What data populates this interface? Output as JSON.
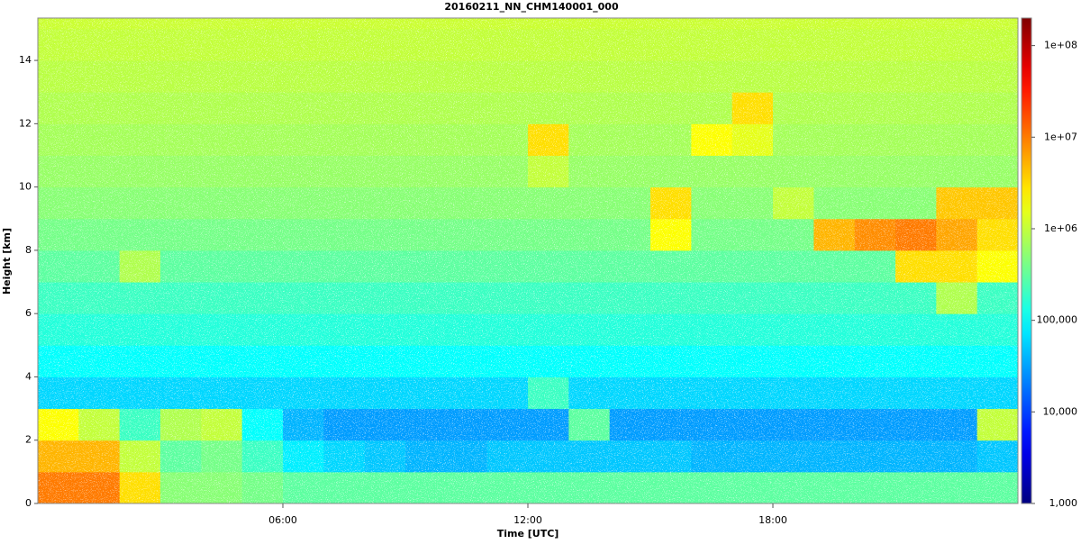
{
  "chart_data": {
    "type": "heatmap",
    "title": "20160211_NN_CHM140001_000",
    "x_label": "Time [UTC]",
    "y_label": "Height [km]",
    "xlim": [
      0,
      24
    ],
    "ylim": [
      0,
      15.34
    ],
    "xticks": [
      {
        "value": 6,
        "label": "06:00"
      },
      {
        "value": 12,
        "label": "12:00"
      },
      {
        "value": 18,
        "label": "18:00"
      }
    ],
    "yticks": [
      0,
      2,
      4,
      6,
      8,
      10,
      12,
      14
    ],
    "colormap": "jet",
    "color_scale": "log",
    "clim": [
      1000,
      200000000
    ],
    "cticks": [
      {
        "value": 1000,
        "label": "1,000"
      },
      {
        "value": 10000,
        "label": "10,000"
      },
      {
        "value": 100000,
        "label": "100,000"
      },
      {
        "value": 1000000,
        "label": "1e+06"
      },
      {
        "value": 10000000,
        "label": "1e+07"
      },
      {
        "value": 100000000,
        "label": "1e+08"
      }
    ],
    "z": [
      [
        10000000,
        10000000,
        3000000,
        500000,
        500000,
        400000,
        300000,
        300000,
        300000,
        300000,
        300000,
        300000,
        300000,
        300000,
        300000,
        300000,
        300000,
        300000,
        300000,
        300000,
        300000,
        300000,
        300000,
        300000
      ],
      [
        5000000,
        5000000,
        1000000,
        300000,
        400000,
        200000,
        80000,
        60000,
        50000,
        40000,
        40000,
        50000,
        50000,
        50000,
        50000,
        50000,
        40000,
        40000,
        40000,
        40000,
        40000,
        40000,
        40000,
        50000
      ],
      [
        2000000,
        1000000,
        200000,
        800000,
        1000000,
        100000,
        40000,
        30000,
        30000,
        30000,
        30000,
        30000,
        30000,
        300000,
        30000,
        30000,
        30000,
        30000,
        30000,
        30000,
        30000,
        30000,
        30000,
        1000000
      ],
      [
        60000,
        60000,
        60000,
        60000,
        60000,
        60000,
        60000,
        60000,
        60000,
        60000,
        60000,
        60000,
        200000,
        60000,
        60000,
        60000,
        60000,
        60000,
        60000,
        60000,
        60000,
        60000,
        60000,
        60000
      ],
      [
        100000,
        100000,
        100000,
        100000,
        100000,
        100000,
        100000,
        100000,
        100000,
        100000,
        100000,
        100000,
        100000,
        100000,
        100000,
        100000,
        100000,
        100000,
        100000,
        100000,
        100000,
        100000,
        100000,
        100000
      ],
      [
        150000,
        150000,
        150000,
        150000,
        150000,
        150000,
        150000,
        150000,
        150000,
        150000,
        150000,
        150000,
        150000,
        150000,
        150000,
        150000,
        150000,
        150000,
        150000,
        150000,
        150000,
        150000,
        150000,
        150000
      ],
      [
        200000,
        200000,
        200000,
        200000,
        200000,
        200000,
        200000,
        200000,
        200000,
        200000,
        200000,
        200000,
        200000,
        200000,
        200000,
        200000,
        200000,
        200000,
        200000,
        200000,
        200000,
        200000,
        800000,
        200000
      ],
      [
        300000,
        300000,
        800000,
        300000,
        300000,
        300000,
        300000,
        300000,
        300000,
        300000,
        300000,
        300000,
        300000,
        300000,
        300000,
        300000,
        300000,
        300000,
        300000,
        300000,
        300000,
        3000000,
        3000000,
        2000000
      ],
      [
        400000,
        400000,
        400000,
        400000,
        400000,
        400000,
        400000,
        400000,
        400000,
        400000,
        400000,
        400000,
        400000,
        400000,
        400000,
        2000000,
        400000,
        400000,
        400000,
        5000000,
        8000000,
        10000000,
        6000000,
        3000000
      ],
      [
        500000,
        500000,
        500000,
        500000,
        500000,
        500000,
        500000,
        500000,
        500000,
        500000,
        500000,
        500000,
        500000,
        500000,
        500000,
        3000000,
        500000,
        500000,
        1000000,
        500000,
        500000,
        500000,
        4000000,
        4000000
      ],
      [
        600000,
        600000,
        600000,
        600000,
        600000,
        600000,
        600000,
        600000,
        600000,
        600000,
        600000,
        600000,
        1000000,
        600000,
        600000,
        600000,
        600000,
        600000,
        600000,
        600000,
        600000,
        600000,
        600000,
        600000
      ],
      [
        700000,
        700000,
        700000,
        700000,
        700000,
        700000,
        700000,
        700000,
        700000,
        700000,
        700000,
        700000,
        3000000,
        700000,
        700000,
        700000,
        2000000,
        1500000,
        700000,
        700000,
        700000,
        700000,
        700000,
        700000
      ],
      [
        800000,
        800000,
        800000,
        800000,
        800000,
        800000,
        800000,
        800000,
        800000,
        800000,
        800000,
        800000,
        800000,
        800000,
        800000,
        800000,
        800000,
        3000000,
        800000,
        800000,
        800000,
        800000,
        800000,
        800000
      ],
      [
        900000,
        900000,
        900000,
        900000,
        900000,
        900000,
        900000,
        900000,
        900000,
        900000,
        900000,
        900000,
        900000,
        900000,
        900000,
        900000,
        900000,
        900000,
        900000,
        900000,
        900000,
        900000,
        900000,
        900000
      ],
      [
        1000000,
        1000000,
        1000000,
        1000000,
        1000000,
        1000000,
        1000000,
        1000000,
        1000000,
        1000000,
        1000000,
        1000000,
        1000000,
        1000000,
        1000000,
        1000000,
        1000000,
        1000000,
        1000000,
        1000000,
        1000000,
        1000000,
        1000000,
        1000000
      ],
      [
        1100000,
        1100000,
        1100000,
        1100000,
        1100000,
        1100000,
        1100000,
        1100000,
        1100000,
        1100000,
        1100000,
        1100000,
        1100000,
        1100000,
        1100000,
        1100000,
        1100000,
        1100000,
        1100000,
        1100000,
        1100000,
        1100000,
        1100000,
        1100000
      ]
    ]
  }
}
